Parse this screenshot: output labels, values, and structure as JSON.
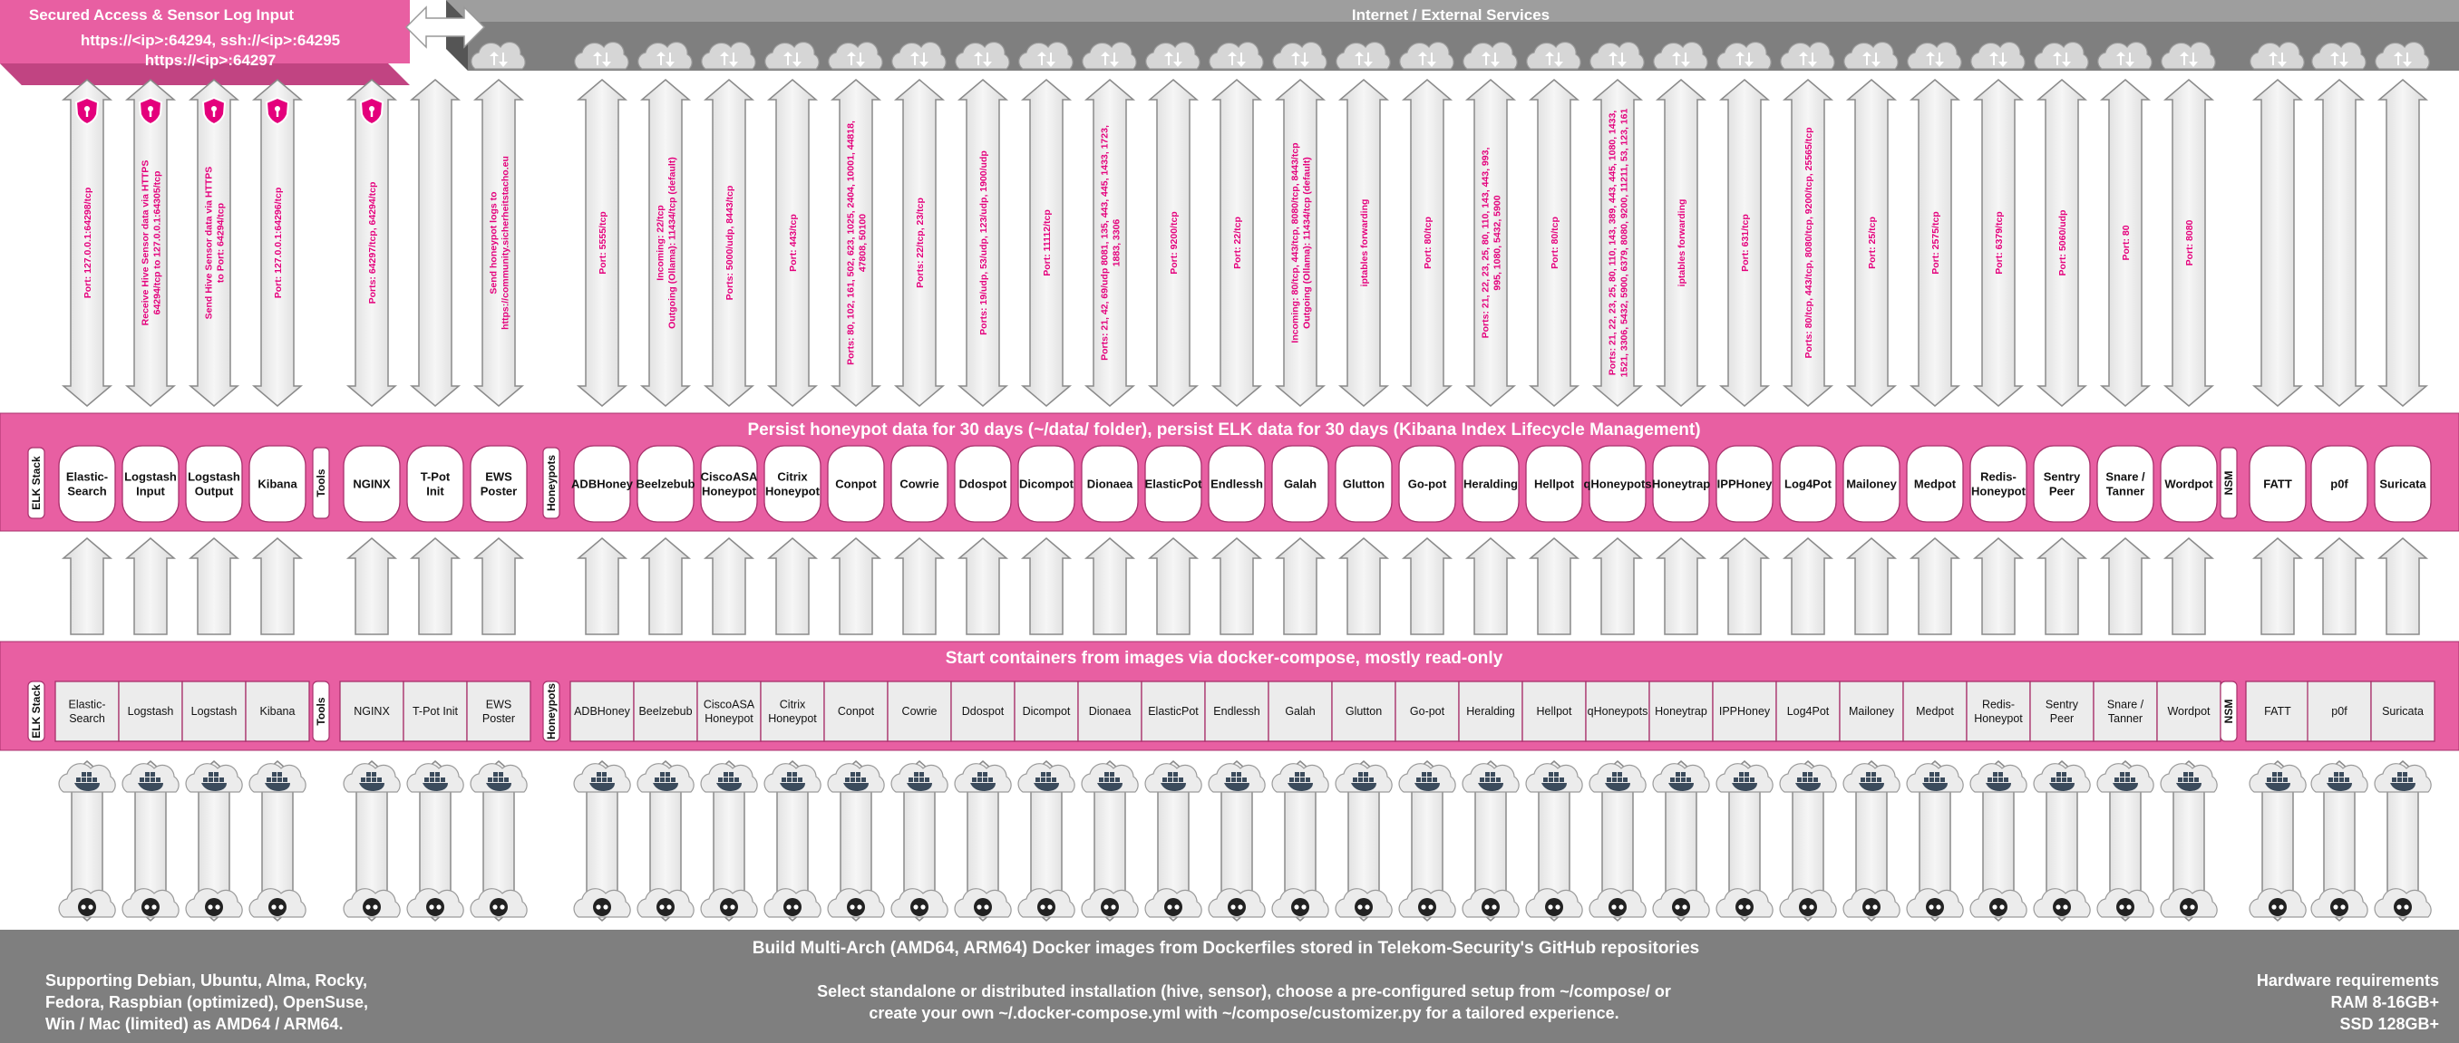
{
  "colors": {
    "pink": "#e85fa2",
    "pink_dark": "#a8306c",
    "pink_label": "#e4007c",
    "grey_dark": "#7f7f7f",
    "grey_side": "#555555",
    "grey_light": "#e8e8e8",
    "arrow_stroke": "#8a8a8a",
    "white": "#ffffff"
  },
  "top_box": {
    "title": "Secured Access & Sensor Log Input",
    "line1": "https://<ip>:64294, ssh://<ip>:64295",
    "line2": "https://<ip>:64297"
  },
  "internet_bar": {
    "title": "Internet / External Services"
  },
  "persist_bar": {
    "title": "Persist honeypot data for 30 days (~/data/ folder), persist ELK data for 30 days (Kibana Index Lifecycle Management)"
  },
  "start_bar": {
    "title": "Start containers from images via docker-compose, mostly read-only"
  },
  "build_bar": {
    "title": "Build Multi-Arch (AMD64, ARM64) Docker images from Dockerfiles stored in Telekom-Security's GitHub repositories",
    "left": [
      "Supporting Debian, Ubuntu, Alma, Rocky,",
      "Fedora, Raspbian (optimized), OpenSuse,",
      "Win / Mac (limited) as AMD64 / ARM64."
    ],
    "center": [
      "Select standalone or distributed installation (hive, sensor), choose a pre-configured setup from ~/compose/ or",
      "create your own ~/.docker-compose.yml with ~/compose/customizer.py for a tailored experience."
    ],
    "right": [
      "Hardware requirements",
      "RAM 8-16GB+",
      "SSD 128GB+"
    ]
  },
  "groups": [
    {
      "id": "elk",
      "label": "ELK Stack",
      "items": [
        {
          "persist": [
            "Elastic-",
            "Search"
          ],
          "start": [
            "Elastic-",
            "Search"
          ],
          "port": [
            "Port: 127.0.0.1:64298/tcp"
          ],
          "shield": true
        },
        {
          "persist": [
            "Logstash",
            "Input"
          ],
          "start": [
            "Logstash"
          ],
          "port": [
            "Receive Hive Sensor data via HTTPS",
            "64294/tcp to 127.0.0.1:64305/tcp"
          ],
          "shield": true
        },
        {
          "persist": [
            "Logstash",
            "Output"
          ],
          "start": [
            "Logstash"
          ],
          "port": [
            "Send Hive Sensor data via HTTPS",
            "to Port: 64294/tcp"
          ],
          "shield": true
        },
        {
          "persist": [
            "Kibana"
          ],
          "start": [
            "Kibana"
          ],
          "port": [
            "Port: 127.0.0.1:64296/tcp"
          ],
          "shield": true
        }
      ]
    },
    {
      "id": "tools",
      "label": "Tools",
      "items": [
        {
          "persist": [
            "NGINX"
          ],
          "start": [
            "NGINX"
          ],
          "port": [
            "Ports: 64297/tcp, 64294/tcp"
          ],
          "shield": true
        },
        {
          "persist": [
            "T-Pot",
            "Init"
          ],
          "start": [
            "T-Pot Init"
          ],
          "port": [],
          "shield": false
        },
        {
          "persist": [
            "EWS",
            "Poster"
          ],
          "start": [
            "EWS",
            "Poster"
          ],
          "port": [
            "Send honeypot logs to",
            "https://community.sicherheitstacho.eu"
          ],
          "shield": false,
          "cloud": true
        }
      ]
    },
    {
      "id": "honeypots",
      "label": "Honeypots",
      "items": [
        {
          "persist": [
            "ADBHoney"
          ],
          "start": [
            "ADBHoney"
          ],
          "port": [
            "Port: 5555/tcp"
          ],
          "cloud": true
        },
        {
          "persist": [
            "Beelzebub"
          ],
          "start": [
            "Beelzebub"
          ],
          "port": [
            "Incoming: 22/tcp",
            "Outgoing (Ollama): 11434/tcp (default)"
          ],
          "cloud": true
        },
        {
          "persist": [
            "CiscoASA",
            "Honeypot"
          ],
          "start": [
            "CiscoASA",
            "Honeypot"
          ],
          "port": [
            "Ports: 5000/udp, 8443/tcp"
          ],
          "cloud": true
        },
        {
          "persist": [
            "Citrix",
            "Honeypot"
          ],
          "start": [
            "Citrix",
            "Honeypot"
          ],
          "port": [
            "Port: 443/tcp"
          ],
          "cloud": true
        },
        {
          "persist": [
            "Conpot"
          ],
          "start": [
            "Conpot"
          ],
          "port": [
            "Ports: 80, 102, 161, 502, 623, 1025, 2404, 10001, 44818,",
            "47808, 50100"
          ],
          "cloud": true
        },
        {
          "persist": [
            "Cowrie"
          ],
          "start": [
            "Cowrie"
          ],
          "port": [
            "Ports: 22/tcp, 23/tcp"
          ],
          "cloud": true
        },
        {
          "persist": [
            "Ddospot"
          ],
          "start": [
            "Ddospot"
          ],
          "port": [
            "Ports: 19/udp, 53/udp, 123/udp, 1900/udp"
          ],
          "cloud": true
        },
        {
          "persist": [
            "Dicompot"
          ],
          "start": [
            "Dicompot"
          ],
          "port": [
            "Port: 11112/tcp"
          ],
          "cloud": true
        },
        {
          "persist": [
            "Dionaea"
          ],
          "start": [
            "Dionaea"
          ],
          "port": [
            "Ports: 21, 42, 69/udp 8081, 135, 443, 445, 1433, 1723,",
            "1883, 3306"
          ],
          "cloud": true
        },
        {
          "persist": [
            "ElasticPot"
          ],
          "start": [
            "ElasticPot"
          ],
          "port": [
            "Port: 9200/tcp"
          ],
          "cloud": true
        },
        {
          "persist": [
            "Endlessh"
          ],
          "start": [
            "Endlessh"
          ],
          "port": [
            "Port: 22/tcp"
          ],
          "cloud": true
        },
        {
          "persist": [
            "Galah"
          ],
          "start": [
            "Galah"
          ],
          "port": [
            "Incoming: 80/tcp, 443/tcp, 8080/tcp, 8443/tcp",
            "Outgoing (Ollama): 11434/tcp (default)"
          ],
          "cloud": true
        },
        {
          "persist": [
            "Glutton"
          ],
          "start": [
            "Glutton"
          ],
          "port": [
            "iptables forwarding"
          ],
          "cloud": true
        },
        {
          "persist": [
            "Go-pot"
          ],
          "start": [
            "Go-pot"
          ],
          "port": [
            "Port: 80/tcp"
          ],
          "cloud": true
        },
        {
          "persist": [
            "Heralding"
          ],
          "start": [
            "Heralding"
          ],
          "port": [
            "Ports: 21, 22, 23, 25, 80, 110, 143, 443, 993,",
            "995, 1080, 5432, 5900"
          ],
          "cloud": true
        },
        {
          "persist": [
            "Hellpot"
          ],
          "start": [
            "Hellpot"
          ],
          "port": [
            "Port: 80/tcp"
          ],
          "cloud": true
        },
        {
          "persist": [
            "qHoneypots"
          ],
          "start": [
            "qHoneypots"
          ],
          "port": [
            "Ports: 21, 22, 23, 25, 80, 110, 143, 389, 443, 445, 1080, 1433,",
            "1521, 3306, 5432, 5900, 6379, 8080, 9200, 11211, 53, 123, 161"
          ],
          "cloud": true
        },
        {
          "persist": [
            "Honeytrap"
          ],
          "start": [
            "Honeytrap"
          ],
          "port": [
            "iptables forwarding"
          ],
          "cloud": true
        },
        {
          "persist": [
            "IPPHoney"
          ],
          "start": [
            "IPPHoney"
          ],
          "port": [
            "Port: 631/tcp"
          ],
          "cloud": true
        },
        {
          "persist": [
            "Log4Pot"
          ],
          "start": [
            "Log4Pot"
          ],
          "port": [
            "Ports: 80/tcp, 443/tcp, 8080/tcp, 9200/tcp, 25565/tcp"
          ],
          "cloud": true
        },
        {
          "persist": [
            "Mailoney"
          ],
          "start": [
            "Mailoney"
          ],
          "port": [
            "Port: 25/tcp"
          ],
          "cloud": true
        },
        {
          "persist": [
            "Medpot"
          ],
          "start": [
            "Medpot"
          ],
          "port": [
            "Port: 2575/tcp"
          ],
          "cloud": true
        },
        {
          "persist": [
            "Redis-",
            "Honeypot"
          ],
          "start": [
            "Redis-",
            "Honeypot"
          ],
          "port": [
            "Port: 6379/tcp"
          ],
          "cloud": true
        },
        {
          "persist": [
            "Sentry",
            "Peer"
          ],
          "start": [
            "Sentry",
            "Peer"
          ],
          "port": [
            "Port: 5060/udp"
          ],
          "cloud": true
        },
        {
          "persist": [
            "Snare /",
            "Tanner"
          ],
          "start": [
            "Snare /",
            "Tanner"
          ],
          "port": [
            "Port: 80"
          ],
          "cloud": true
        },
        {
          "persist": [
            "Wordpot"
          ],
          "start": [
            "Wordpot"
          ],
          "port": [
            "Port: 8080"
          ],
          "cloud": true
        }
      ]
    },
    {
      "id": "nsm",
      "label": "NSM",
      "items": [
        {
          "persist": [
            "FATT"
          ],
          "start": [
            "FATT"
          ],
          "port": [],
          "cloud": true
        },
        {
          "persist": [
            "p0f"
          ],
          "start": [
            "p0f"
          ],
          "port": [],
          "cloud": true
        },
        {
          "persist": [
            "Suricata"
          ],
          "start": [
            "Suricata"
          ],
          "port": [],
          "cloud": true
        }
      ]
    }
  ]
}
